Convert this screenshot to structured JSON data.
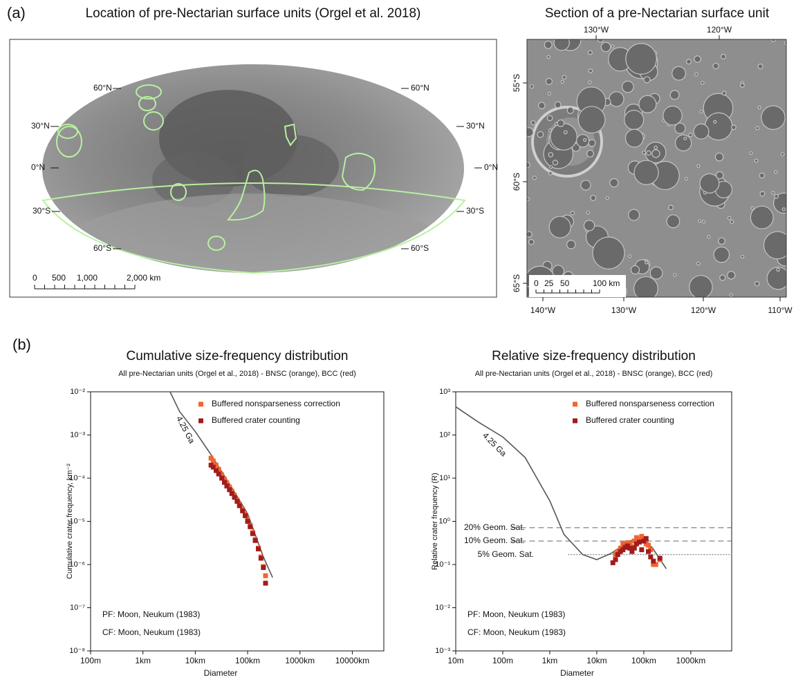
{
  "panel_labels": [
    "(a)",
    "(b)"
  ],
  "map_a": {
    "title": "Location of pre-Nectarian surface units (Orgel et al. 2018)",
    "lat_labels_left": [
      "60°N",
      "30°N",
      "0°N",
      "30°S",
      "60°S"
    ],
    "lat_labels_right": [
      "60°N",
      "30°N",
      "0°N",
      "30°S",
      "60°S"
    ],
    "scale_labels": [
      "0",
      "500",
      "1,000",
      "2,000 km"
    ]
  },
  "map_b": {
    "title": "Section of a pre-Nectarian surface unit",
    "top_labels": [
      "130°W",
      "120°W"
    ],
    "left_labels": [
      "55°S",
      "60°S",
      "65°S"
    ],
    "bottom_labels": [
      "140°W",
      "130°W",
      "120°W",
      "110°W"
    ],
    "scale_labels": [
      "0",
      "25",
      "50",
      "100 km"
    ]
  },
  "chart_data": [
    {
      "type": "scatter",
      "title": "Cumulative size-frequency distribution",
      "subtitle": "All pre-Nectarian units (Orgel et al., 2018) - BNSC (orange), BCC (red)",
      "x_label": "Diameter",
      "y_label": "Cumulative crater frequency, km⁻²",
      "log_x": true,
      "log_y": true,
      "xlim": [
        0.1,
        40000
      ],
      "xticks": [
        {
          "value": 0.1,
          "label": "100m"
        },
        {
          "value": 1,
          "label": "1km"
        },
        {
          "value": 10,
          "label": "10km"
        },
        {
          "value": 100,
          "label": "100km"
        },
        {
          "value": 1000,
          "label": "1000km"
        },
        {
          "value": 10000,
          "label": "10000km"
        }
      ],
      "ylim": [
        1e-08,
        0.01
      ],
      "yticks": [
        {
          "value": 0.01,
          "label": "10⁻²"
        },
        {
          "value": 0.001,
          "label": "10⁻³"
        },
        {
          "value": 0.0001,
          "label": "10⁻⁴"
        },
        {
          "value": 1e-05,
          "label": "10⁻⁵"
        },
        {
          "value": 1e-06,
          "label": "10⁻⁶"
        },
        {
          "value": 1e-07,
          "label": "10⁻⁷"
        },
        {
          "value": 1e-08,
          "label": "10⁻⁸"
        }
      ],
      "series": [
        {
          "name": "Buffered nonsparseness correction",
          "color": "#f26430",
          "x": [
            20,
            22,
            25,
            28,
            32,
            36,
            40,
            45,
            50,
            56,
            63,
            70,
            80,
            90,
            100,
            112,
            125,
            140,
            160,
            180,
            200,
            220
          ],
          "values": [
            0.00029,
            0.00025,
            0.0002,
            0.00016,
            0.00012,
            9.5e-05,
            7.8e-05,
            6.2e-05,
            5e-05,
            4e-05,
            3.1e-05,
            2.5e-05,
            1.9e-05,
            1.45e-05,
            1.1e-05,
            8e-06,
            5.5e-06,
            3.8e-06,
            2.4e-06,
            1.5e-06,
            9e-07,
            5.5e-07
          ]
        },
        {
          "name": "Buffered crater counting",
          "color": "#a11c1c",
          "x": [
            20,
            22,
            25,
            28,
            32,
            36,
            40,
            45,
            50,
            56,
            63,
            70,
            80,
            90,
            100,
            112,
            125,
            140,
            160,
            180,
            200,
            220
          ],
          "values": [
            0.0002,
            0.00018,
            0.00015,
            0.000125,
            0.0001,
            8e-05,
            6.6e-05,
            5.4e-05,
            4.4e-05,
            3.6e-05,
            2.9e-05,
            2.3e-05,
            1.75e-05,
            1.35e-05,
            1e-05,
            7.5e-06,
            5.2e-06,
            3.6e-06,
            2.3e-06,
            1.4e-06,
            8.5e-07,
            3.7e-07
          ]
        }
      ],
      "curve": {
        "label": "4.25 Ga",
        "color": "#555555",
        "x": [
          3.3,
          5,
          10,
          20,
          50,
          100,
          200,
          300
        ],
        "values": [
          0.01,
          0.0035,
          0.0012,
          0.00035,
          6e-05,
          1.5e-05,
          1.5e-06,
          5e-07
        ]
      },
      "annotations": [
        "PF: Moon, Neukum (1983)",
        "CF: Moon, Neukum (1983)"
      ],
      "legend": "upper right"
    },
    {
      "type": "scatter",
      "title": "Relative size-frequency distribution",
      "subtitle": "All pre-Nectarian units (Orgel et al., 2018) - BNSC (orange), BCC (red)",
      "x_label": "Diameter",
      "y_label": "Relative crater frequency (R)",
      "log_x": true,
      "log_y": true,
      "xlim": [
        0.01,
        7400
      ],
      "xticks": [
        {
          "value": 0.01,
          "label": "10m"
        },
        {
          "value": 0.1,
          "label": "100m"
        },
        {
          "value": 1,
          "label": "1km"
        },
        {
          "value": 10,
          "label": "10km"
        },
        {
          "value": 100,
          "label": "100km"
        },
        {
          "value": 1000,
          "label": "1000km"
        }
      ],
      "ylim": [
        0.001,
        1000
      ],
      "yticks": [
        {
          "value": 1000,
          "label": "10³"
        },
        {
          "value": 100,
          "label": "10²"
        },
        {
          "value": 10,
          "label": "10¹"
        },
        {
          "value": 1,
          "label": "10⁰"
        },
        {
          "value": 0.1,
          "label": "10⁻¹"
        },
        {
          "value": 0.01,
          "label": "10⁻²"
        },
        {
          "value": 0.001,
          "label": "10⁻³"
        }
      ],
      "series": [
        {
          "name": "Buffered nonsparseness correction",
          "color": "#f26430",
          "x": [
            25,
            28,
            32,
            36,
            40,
            45,
            50,
            56,
            63,
            70,
            80,
            90,
            100,
            112,
            125,
            140,
            160,
            180,
            220
          ],
          "values": [
            0.17,
            0.2,
            0.24,
            0.3,
            0.28,
            0.32,
            0.3,
            0.26,
            0.35,
            0.42,
            0.38,
            0.45,
            0.35,
            0.3,
            0.28,
            0.22,
            0.1,
            0.1,
            0.13
          ]
        },
        {
          "name": "Buffered crater counting",
          "color": "#a11c1c",
          "x": [
            22,
            25,
            28,
            32,
            36,
            40,
            45,
            50,
            56,
            63,
            70,
            80,
            90,
            100,
            112,
            125,
            140,
            160,
            220
          ],
          "values": [
            0.11,
            0.13,
            0.17,
            0.2,
            0.22,
            0.25,
            0.27,
            0.24,
            0.2,
            0.24,
            0.3,
            0.33,
            0.22,
            0.35,
            0.4,
            0.2,
            0.15,
            0.12,
            0.14
          ]
        }
      ],
      "curve": {
        "label": "4.25 Ga",
        "color": "#555555",
        "x": [
          0.01,
          0.03,
          0.1,
          0.3,
          1,
          2,
          5,
          10,
          20,
          50,
          80,
          150,
          300
        ],
        "values": [
          450,
          200,
          90,
          30,
          3,
          0.5,
          0.17,
          0.13,
          0.18,
          0.35,
          0.4,
          0.25,
          0.08
        ]
      },
      "reference_lines": [
        {
          "label": "20% Geom. Sat.",
          "value": 0.71
        },
        {
          "label": "10% Geom. Sat.",
          "value": 0.35
        },
        {
          "label": "5% Geom. Sat.",
          "value": 0.17
        }
      ],
      "annotations": [
        "PF: Moon, Neukum (1983)",
        "CF: Moon, Neukum (1983)"
      ],
      "legend": "upper right"
    }
  ]
}
